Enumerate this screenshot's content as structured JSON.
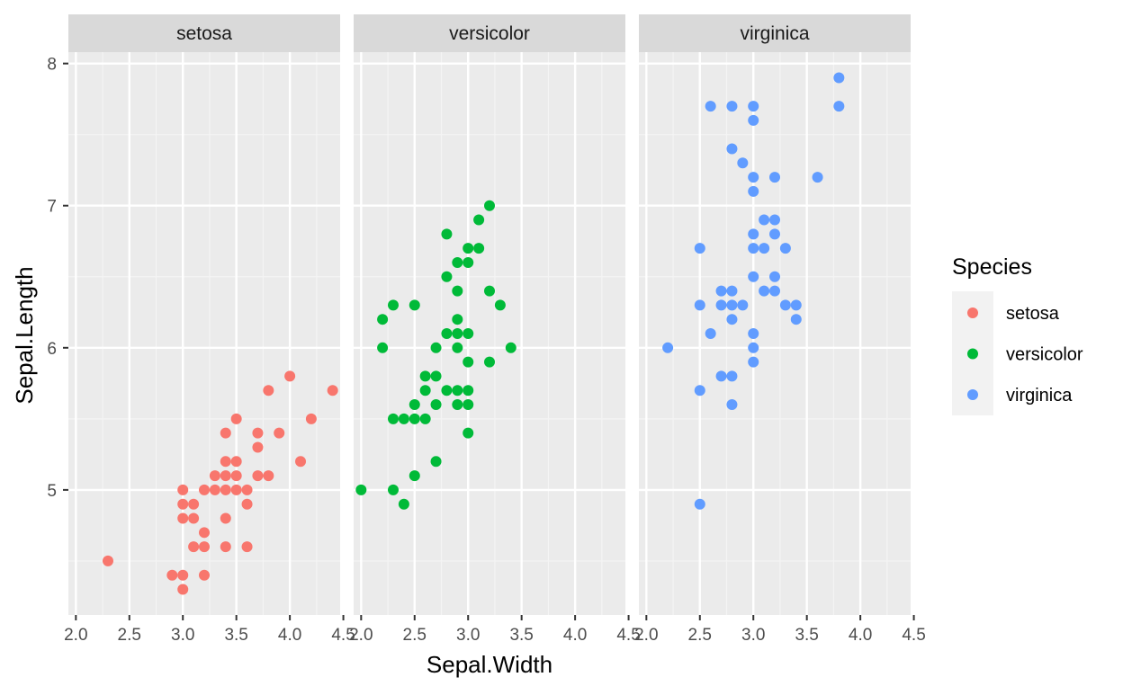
{
  "chart_data": {
    "type": "scatter",
    "facet_by": "Species",
    "xlabel": "Sepal.Width",
    "ylabel": "Sepal.Length",
    "xlim": [
      1.93,
      4.47
    ],
    "ylim": [
      4.12,
      8.08
    ],
    "x_ticks": [
      2.0,
      2.5,
      3.0,
      3.5,
      4.0,
      4.5
    ],
    "x_tick_labels": [
      "2.0",
      "2.5",
      "3.0",
      "3.5",
      "4.0",
      "4.5"
    ],
    "y_ticks": [
      5,
      6,
      7,
      8
    ],
    "y_tick_labels": [
      "5",
      "6",
      "7",
      "8"
    ],
    "grid": true,
    "legend": {
      "title": "Species",
      "position": "right",
      "entries": [
        {
          "label": "setosa",
          "color": "#F8766D"
        },
        {
          "label": "versicolor",
          "color": "#00BA38"
        },
        {
          "label": "virginica",
          "color": "#619CFF"
        }
      ]
    },
    "colors": {
      "panel_background": "#EBEBEB",
      "strip_background": "#D9D9D9",
      "grid_major": "#FFFFFF",
      "axis_text": "#4D4D4D",
      "strip_text": "#1A1A1A"
    },
    "panels": [
      {
        "title": "setosa",
        "color": "#F8766D",
        "points": [
          [
            2.3,
            4.5
          ],
          [
            2.9,
            4.4
          ],
          [
            3.0,
            4.4
          ],
          [
            3.0,
            4.3
          ],
          [
            3.2,
            4.4
          ],
          [
            3.0,
            5.0
          ],
          [
            3.0,
            4.9
          ],
          [
            3.0,
            4.8
          ],
          [
            3.1,
            4.9
          ],
          [
            3.1,
            4.8
          ],
          [
            3.1,
            4.6
          ],
          [
            3.2,
            5.0
          ],
          [
            3.2,
            4.7
          ],
          [
            3.2,
            4.6
          ],
          [
            3.3,
            5.0
          ],
          [
            3.3,
            5.1
          ],
          [
            3.4,
            5.0
          ],
          [
            3.4,
            5.1
          ],
          [
            3.4,
            5.2
          ],
          [
            3.4,
            5.4
          ],
          [
            3.4,
            4.8
          ],
          [
            3.4,
            4.6
          ],
          [
            3.5,
            5.0
          ],
          [
            3.5,
            5.1
          ],
          [
            3.5,
            5.2
          ],
          [
            3.5,
            5.5
          ],
          [
            3.6,
            5.0
          ],
          [
            3.6,
            4.9
          ],
          [
            3.6,
            4.6
          ],
          [
            3.7,
            5.1
          ],
          [
            3.7,
            5.3
          ],
          [
            3.7,
            5.4
          ],
          [
            3.8,
            5.7
          ],
          [
            3.8,
            5.1
          ],
          [
            3.9,
            5.4
          ],
          [
            4.0,
            5.8
          ],
          [
            4.1,
            5.2
          ],
          [
            4.2,
            5.5
          ],
          [
            4.4,
            5.7
          ]
        ]
      },
      {
        "title": "versicolor",
        "color": "#00BA38",
        "points": [
          [
            2.0,
            5.0
          ],
          [
            2.2,
            6.2
          ],
          [
            2.2,
            6.0
          ],
          [
            2.3,
            6.3
          ],
          [
            2.3,
            5.5
          ],
          [
            2.3,
            5.0
          ],
          [
            2.4,
            5.5
          ],
          [
            2.4,
            4.9
          ],
          [
            2.5,
            6.3
          ],
          [
            2.5,
            5.6
          ],
          [
            2.5,
            5.5
          ],
          [
            2.5,
            5.1
          ],
          [
            2.6,
            5.8
          ],
          [
            2.6,
            5.7
          ],
          [
            2.6,
            5.5
          ],
          [
            2.7,
            6.0
          ],
          [
            2.7,
            5.8
          ],
          [
            2.7,
            5.6
          ],
          [
            2.7,
            5.2
          ],
          [
            2.8,
            6.8
          ],
          [
            2.8,
            6.5
          ],
          [
            2.8,
            6.1
          ],
          [
            2.8,
            5.7
          ],
          [
            2.9,
            6.6
          ],
          [
            2.9,
            6.4
          ],
          [
            2.9,
            6.2
          ],
          [
            2.9,
            6.1
          ],
          [
            2.9,
            6.0
          ],
          [
            2.9,
            5.7
          ],
          [
            2.9,
            5.6
          ],
          [
            3.0,
            6.7
          ],
          [
            3.0,
            6.6
          ],
          [
            3.0,
            6.1
          ],
          [
            3.0,
            5.9
          ],
          [
            3.0,
            5.7
          ],
          [
            3.0,
            5.6
          ],
          [
            3.0,
            5.4
          ],
          [
            3.1,
            6.9
          ],
          [
            3.1,
            6.7
          ],
          [
            3.2,
            7.0
          ],
          [
            3.2,
            6.4
          ],
          [
            3.2,
            5.9
          ],
          [
            3.3,
            6.3
          ],
          [
            3.4,
            6.0
          ]
        ]
      },
      {
        "title": "virginica",
        "color": "#619CFF",
        "points": [
          [
            2.2,
            6.0
          ],
          [
            2.5,
            6.7
          ],
          [
            2.5,
            6.3
          ],
          [
            2.5,
            5.7
          ],
          [
            2.5,
            4.9
          ],
          [
            2.6,
            7.7
          ],
          [
            2.6,
            6.1
          ],
          [
            2.7,
            6.4
          ],
          [
            2.7,
            6.3
          ],
          [
            2.7,
            5.8
          ],
          [
            2.8,
            7.7
          ],
          [
            2.8,
            7.4
          ],
          [
            2.8,
            6.4
          ],
          [
            2.8,
            6.3
          ],
          [
            2.8,
            6.2
          ],
          [
            2.8,
            5.8
          ],
          [
            2.8,
            5.6
          ],
          [
            2.9,
            7.3
          ],
          [
            2.9,
            6.3
          ],
          [
            3.0,
            7.7
          ],
          [
            3.0,
            7.6
          ],
          [
            3.0,
            7.2
          ],
          [
            3.0,
            7.1
          ],
          [
            3.0,
            6.8
          ],
          [
            3.0,
            6.7
          ],
          [
            3.0,
            6.5
          ],
          [
            3.0,
            6.1
          ],
          [
            3.0,
            6.0
          ],
          [
            3.0,
            5.9
          ],
          [
            3.1,
            6.9
          ],
          [
            3.1,
            6.7
          ],
          [
            3.1,
            6.4
          ],
          [
            3.2,
            7.2
          ],
          [
            3.2,
            6.9
          ],
          [
            3.2,
            6.8
          ],
          [
            3.2,
            6.5
          ],
          [
            3.2,
            6.4
          ],
          [
            3.3,
            6.7
          ],
          [
            3.3,
            6.3
          ],
          [
            3.4,
            6.3
          ],
          [
            3.4,
            6.2
          ],
          [
            3.6,
            7.2
          ],
          [
            3.8,
            7.9
          ],
          [
            3.8,
            7.7
          ]
        ]
      }
    ]
  }
}
